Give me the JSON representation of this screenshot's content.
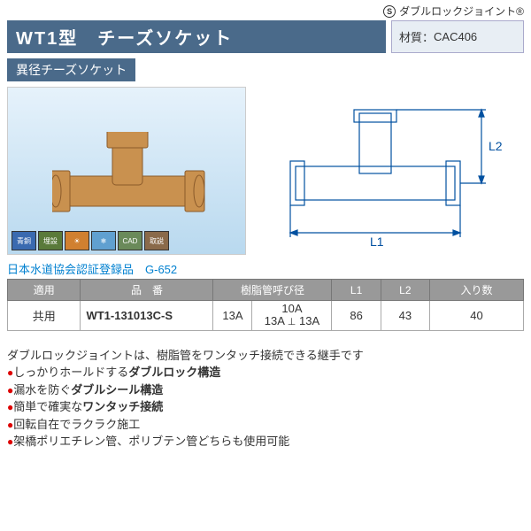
{
  "brand_icon": "S",
  "brand_text": "ダブルロックジョイント®",
  "title": "WT1型　チーズソケット",
  "material_label": "材質：",
  "material_value": "CAC406",
  "subtitle": "異径チーズソケット",
  "photo_badges": [
    {
      "label": "青銅",
      "bg": "#3a6ab0"
    },
    {
      "label": "埋設",
      "bg": "#5a7a3a"
    },
    {
      "label": "☀",
      "bg": "#d08030"
    },
    {
      "label": "❄",
      "bg": "#60a0d0"
    },
    {
      "label": "CAD",
      "bg": "#6a8a5a"
    },
    {
      "label": "取説",
      "bg": "#8a6a4a"
    }
  ],
  "diagram": {
    "L1_label": "L1",
    "L2_label": "L2",
    "line_color": "#0050a0",
    "dim_color": "#0050a0"
  },
  "cert_text": "日本水道協会認証登録品　G-652",
  "table": {
    "headers": [
      "適用",
      "品　番",
      "樹脂管呼び径",
      "L1",
      "L2",
      "入り数"
    ],
    "pipe_header_span": 2,
    "row": {
      "apply": "共用",
      "pn": "WT1-131013C-S",
      "pipe_a": "13A",
      "pipe_b_top": "10A",
      "pipe_b_bot_l": "13A",
      "pipe_b_bot_r": "13A",
      "perp": "⊥",
      "L1": "86",
      "L2": "43",
      "qty": "40"
    }
  },
  "description": "ダブルロックジョイントは、樹脂管をワンタッチ接続できる継手です",
  "features": [
    {
      "pre": "しっかりホールドする",
      "bold": "ダブルロック構造"
    },
    {
      "pre": "漏水を防ぐ",
      "bold": "ダブルシール構造"
    },
    {
      "pre": "簡単で確実な",
      "bold": "ワンタッチ接続"
    },
    {
      "pre": "回転自在でラクラク施工",
      "bold": ""
    },
    {
      "pre": "架橋ポリエチレン管、ポリブテン管どちらも使用可能",
      "bold": ""
    }
  ]
}
